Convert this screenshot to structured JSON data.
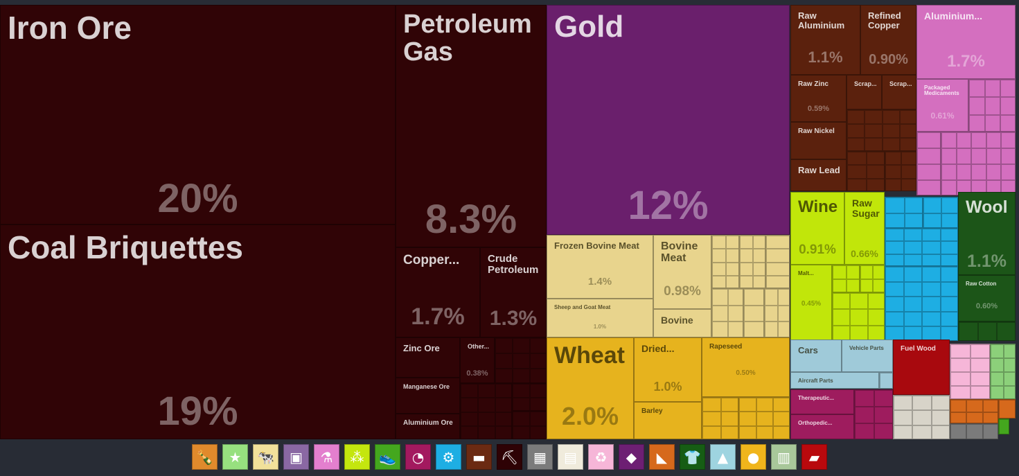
{
  "chart_data": {
    "type": "treemap",
    "title": "",
    "items": [
      {
        "name": "Iron Ore",
        "value_label": "20%",
        "value": 20,
        "color": "#300406"
      },
      {
        "name": "Coal Briquettes",
        "value_label": "19%",
        "value": 19,
        "color": "#300406"
      },
      {
        "name": "Petroleum Gas",
        "value_label": "8.3%",
        "value": 8.3,
        "color": "#300406"
      },
      {
        "name": "Copper...",
        "value_label": "1.7%",
        "value": 1.7,
        "color": "#300406"
      },
      {
        "name": "Crude Petroleum",
        "value_label": "1.3%",
        "value": 1.3,
        "color": "#300406"
      },
      {
        "name": "Zinc Ore",
        "value_label": "",
        "value": null,
        "color": "#300406"
      },
      {
        "name": "Other...",
        "value_label": "0.38%",
        "value": 0.38,
        "color": "#300406"
      },
      {
        "name": "Manganese Ore",
        "value_label": "",
        "value": null,
        "color": "#300406"
      },
      {
        "name": "Aluminium Ore",
        "value_label": "",
        "value": null,
        "color": "#300406"
      },
      {
        "name": "Gold",
        "value_label": "12%",
        "value": 12,
        "color": "#6a1f6c"
      },
      {
        "name": "Raw Aluminium",
        "value_label": "1.1%",
        "value": 1.1,
        "color": "#5b210d"
      },
      {
        "name": "Refined Copper",
        "value_label": "0.90%",
        "value": 0.9,
        "color": "#5b210d"
      },
      {
        "name": "Raw Zinc",
        "value_label": "0.59%",
        "value": 0.59,
        "color": "#5b210d"
      },
      {
        "name": "Scrap...",
        "value_label": "",
        "value": null,
        "color": "#5b210d"
      },
      {
        "name": "Scrap...",
        "value_label": "",
        "value": null,
        "color": "#5b210d"
      },
      {
        "name": "Raw Nickel",
        "value_label": "",
        "value": null,
        "color": "#5b210d"
      },
      {
        "name": "Raw Lead",
        "value_label": "",
        "value": null,
        "color": "#5b210d"
      },
      {
        "name": "Aluminium...",
        "value_label": "1.7%",
        "value": 1.7,
        "color": "#d46fbf"
      },
      {
        "name": "Packaged Medicaments",
        "value_label": "0.61%",
        "value": 0.61,
        "color": "#d46fbf"
      },
      {
        "name": "Frozen Bovine Meat",
        "value_label": "1.4%",
        "value": 1.4,
        "color": "#e8d48d"
      },
      {
        "name": "Bovine Meat",
        "value_label": "0.98%",
        "value": 0.98,
        "color": "#e8d48d"
      },
      {
        "name": "Sheep and Goat Meat",
        "value_label": "1.0%",
        "value": 1.0,
        "color": "#e8d48d"
      },
      {
        "name": "Bovine",
        "value_label": "",
        "value": null,
        "color": "#e8d48d"
      },
      {
        "name": "Wine",
        "value_label": "0.91%",
        "value": 0.91,
        "color": "#c1e60a"
      },
      {
        "name": "Raw Sugar",
        "value_label": "0.66%",
        "value": 0.66,
        "color": "#c1e60a"
      },
      {
        "name": "Malt...",
        "value_label": "0.45%",
        "value": 0.45,
        "color": "#c1e60a"
      },
      {
        "name": "Wool",
        "value_label": "1.1%",
        "value": 1.1,
        "color": "#1c5518"
      },
      {
        "name": "Raw Cotton",
        "value_label": "0.60%",
        "value": 0.6,
        "color": "#1c5518"
      },
      {
        "name": "Wheat",
        "value_label": "2.0%",
        "value": 2.0,
        "color": "#e6b31e"
      },
      {
        "name": "Dried...",
        "value_label": "1.0%",
        "value": 1.0,
        "color": "#e6b31e"
      },
      {
        "name": "Barley",
        "value_label": "",
        "value": null,
        "color": "#e6b31e"
      },
      {
        "name": "Rapeseed",
        "value_label": "0.50%",
        "value": 0.5,
        "color": "#e6b31e"
      },
      {
        "name": "Cars",
        "value_label": "",
        "value": null,
        "color": "#9fcad9"
      },
      {
        "name": "Vehicle Parts",
        "value_label": "",
        "value": null,
        "color": "#9fcad9"
      },
      {
        "name": "Aircraft Parts",
        "value_label": "",
        "value": null,
        "color": "#9fcad9"
      },
      {
        "name": "Fuel Wood",
        "value_label": "",
        "value": null,
        "color": "#a8090e"
      },
      {
        "name": "Therapeutic...",
        "value_label": "",
        "value": null,
        "color": "#9e1c5e"
      },
      {
        "name": "Orthopedic...",
        "value_label": "",
        "value": null,
        "color": "#9e1c5e"
      }
    ],
    "legend": [
      {
        "name": "bottle-icon",
        "color": "#e08a2c",
        "glyph": "🍾"
      },
      {
        "name": "star-icon",
        "color": "#97e07f",
        "glyph": "★"
      },
      {
        "name": "animal-icon",
        "color": "#f1e09a",
        "glyph": "🐄"
      },
      {
        "name": "picture-icon",
        "color": "#8a68a3",
        "glyph": "▣"
      },
      {
        "name": "flask-icon",
        "color": "#e37fce",
        "glyph": "⚗"
      },
      {
        "name": "wheat-icon",
        "color": "#c4e60e",
        "glyph": "⁂"
      },
      {
        "name": "shoe-icon",
        "color": "#44a71e",
        "glyph": "👟"
      },
      {
        "name": "gauge-icon",
        "color": "#a3195f",
        "glyph": "◔"
      },
      {
        "name": "gears-icon",
        "color": "#1eaee3",
        "glyph": "⚙"
      },
      {
        "name": "anvil-icon",
        "color": "#6b2a12",
        "glyph": "▬"
      },
      {
        "name": "pickaxe-icon",
        "color": "#2e0205",
        "glyph": "⛏"
      },
      {
        "name": "box-icon",
        "color": "#7b7b7b",
        "glyph": "▦"
      },
      {
        "name": "scroll-icon",
        "color": "#f0ebdc",
        "glyph": "▤"
      },
      {
        "name": "recycle-icon",
        "color": "#f6b6d8",
        "glyph": "♻"
      },
      {
        "name": "diamond-icon",
        "color": "#6d1f73",
        "glyph": "◆"
      },
      {
        "name": "stone-icon",
        "color": "#d6691c",
        "glyph": "◣"
      },
      {
        "name": "shirt-icon",
        "color": "#165d14",
        "glyph": "👕"
      },
      {
        "name": "road-icon",
        "color": "#9ed4e0",
        "glyph": "▲"
      },
      {
        "name": "fruit-icon",
        "color": "#f0b51c",
        "glyph": "●"
      },
      {
        "name": "building-icon",
        "color": "#a8c79a",
        "glyph": "▥"
      },
      {
        "name": "wood-icon",
        "color": "#b9090d",
        "glyph": "▰"
      }
    ]
  }
}
